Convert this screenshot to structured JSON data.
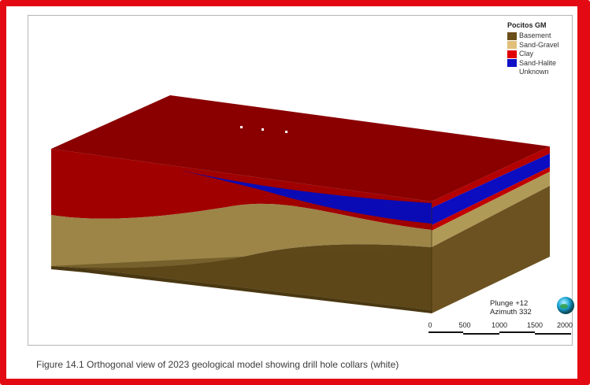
{
  "legend": {
    "title": "Pocitos GM",
    "items": [
      {
        "label": "Basement",
        "color": "#6b4f1a"
      },
      {
        "label": "Sand-Gravel",
        "color": "#e0c07a"
      },
      {
        "label": "Clay",
        "color": "#e00000"
      },
      {
        "label": "Sand-Halite",
        "color": "#1010c8"
      },
      {
        "label": "Unknown",
        "color": ""
      }
    ]
  },
  "orientation": {
    "plunge": "Plunge +12",
    "azimuth": "Azimuth 332"
  },
  "scale_bar": {
    "ticks": [
      "0",
      "500",
      "1000",
      "1500",
      "2000"
    ]
  },
  "caption": "Figure 14.1 Orthogonal view of 2023 geological model showing drill hole collars (white)"
}
